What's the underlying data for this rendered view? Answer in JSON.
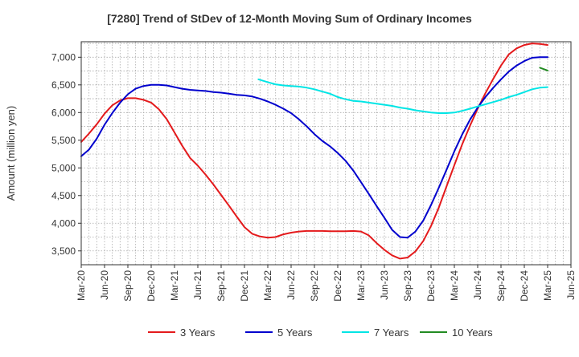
{
  "chart_data": {
    "type": "line",
    "title": "[7280]  Trend of StDev of 12-Month Moving Sum of Ordinary Incomes",
    "xlabel": "",
    "ylabel": "Amount (million yen)",
    "ylim": [
      3250,
      7280
    ],
    "yticks": [
      3500,
      4000,
      4500,
      5000,
      5500,
      6000,
      6500,
      7000
    ],
    "ytick_labels": [
      "3,500",
      "4,000",
      "4,500",
      "5,000",
      "5,500",
      "6,000",
      "6,500",
      "7,000"
    ],
    "x_range": [
      0,
      21
    ],
    "xtick_labels": [
      "Mar-20",
      "Jun-20",
      "Sep-20",
      "Dec-20",
      "Mar-21",
      "Jun-21",
      "Sep-21",
      "Dec-21",
      "Mar-22",
      "Jun-22",
      "Sep-22",
      "Dec-22",
      "Mar-23",
      "Jun-23",
      "Sep-23",
      "Dec-23",
      "Mar-24",
      "Jun-24",
      "Sep-24",
      "Dec-24",
      "Mar-25",
      "Jun-25"
    ],
    "grid": true,
    "legend_position": "bottom",
    "series": [
      {
        "name": "3 Years",
        "color": "#e41a1c",
        "x": [
          0,
          0.33,
          0.67,
          1,
          1.33,
          1.67,
          2,
          2.33,
          2.67,
          3,
          3.33,
          3.67,
          4,
          4.33,
          4.67,
          5,
          5.33,
          5.67,
          6,
          6.33,
          6.67,
          7,
          7.33,
          7.67,
          8,
          8.33,
          8.67,
          9,
          9.33,
          9.67,
          10,
          10.33,
          10.67,
          11,
          11.33,
          11.67,
          12,
          12.33,
          12.67,
          13,
          13.33,
          13.67,
          14,
          14.33,
          14.67,
          15,
          15.33,
          15.67,
          16,
          16.33,
          16.67,
          17,
          17.33,
          17.67,
          18,
          18.33,
          18.67,
          19,
          19.33,
          19.67,
          20
        ],
        "y": [
          5470,
          5620,
          5790,
          5980,
          6130,
          6220,
          6260,
          6260,
          6230,
          6180,
          6060,
          5880,
          5640,
          5400,
          5180,
          5040,
          4880,
          4700,
          4510,
          4320,
          4120,
          3930,
          3810,
          3760,
          3740,
          3750,
          3800,
          3830,
          3850,
          3860,
          3860,
          3860,
          3855,
          3855,
          3855,
          3860,
          3850,
          3780,
          3640,
          3520,
          3420,
          3360,
          3380,
          3490,
          3680,
          3950,
          4280,
          4670,
          5050,
          5420,
          5760,
          6070,
          6350,
          6610,
          6850,
          7050,
          7160,
          7220,
          7250,
          7240,
          7220
        ]
      },
      {
        "name": "5 Years",
        "color": "#0000cd",
        "x": [
          0,
          0.33,
          0.67,
          1,
          1.33,
          1.67,
          2,
          2.33,
          2.67,
          3,
          3.33,
          3.67,
          4,
          4.33,
          4.67,
          5,
          5.33,
          5.67,
          6,
          6.33,
          6.67,
          7,
          7.33,
          7.67,
          8,
          8.33,
          8.67,
          9,
          9.33,
          9.67,
          10,
          10.33,
          10.67,
          11,
          11.33,
          11.67,
          12,
          12.33,
          12.67,
          13,
          13.33,
          13.67,
          14,
          14.33,
          14.67,
          15,
          15.33,
          15.67,
          16,
          16.33,
          16.67,
          17,
          17.33,
          17.67,
          18,
          18.33,
          18.67,
          19,
          19.33,
          19.67,
          20
        ],
        "y": [
          5210,
          5330,
          5530,
          5780,
          5990,
          6180,
          6330,
          6430,
          6480,
          6500,
          6500,
          6490,
          6460,
          6430,
          6410,
          6400,
          6390,
          6370,
          6360,
          6340,
          6320,
          6310,
          6290,
          6250,
          6200,
          6140,
          6070,
          5990,
          5880,
          5750,
          5610,
          5490,
          5390,
          5270,
          5130,
          4950,
          4740,
          4530,
          4310,
          4100,
          3880,
          3750,
          3740,
          3850,
          4050,
          4330,
          4640,
          4970,
          5300,
          5600,
          5870,
          6090,
          6280,
          6450,
          6600,
          6740,
          6850,
          6930,
          6990,
          7000,
          7000
        ]
      },
      {
        "name": "7 Years",
        "color": "#00e5e5",
        "x": [
          7.6,
          8,
          8.33,
          8.67,
          9,
          9.33,
          9.67,
          10,
          10.33,
          10.67,
          11,
          11.33,
          11.67,
          12,
          12.33,
          12.67,
          13,
          13.33,
          13.67,
          14,
          14.33,
          14.67,
          15,
          15.33,
          15.67,
          16,
          16.33,
          16.67,
          17,
          17.33,
          17.67,
          18,
          18.33,
          18.67,
          19,
          19.33,
          19.67,
          20
        ],
        "y": [
          6600,
          6550,
          6510,
          6490,
          6480,
          6470,
          6450,
          6420,
          6380,
          6340,
          6280,
          6240,
          6210,
          6200,
          6180,
          6160,
          6140,
          6120,
          6090,
          6070,
          6040,
          6020,
          6000,
          5990,
          5990,
          6000,
          6030,
          6070,
          6110,
          6150,
          6190,
          6230,
          6280,
          6320,
          6370,
          6420,
          6450,
          6460
        ]
      },
      {
        "name": "10 Years",
        "color": "#228b22",
        "x": [
          19.67,
          20
        ],
        "y": [
          6810,
          6760
        ]
      }
    ]
  }
}
